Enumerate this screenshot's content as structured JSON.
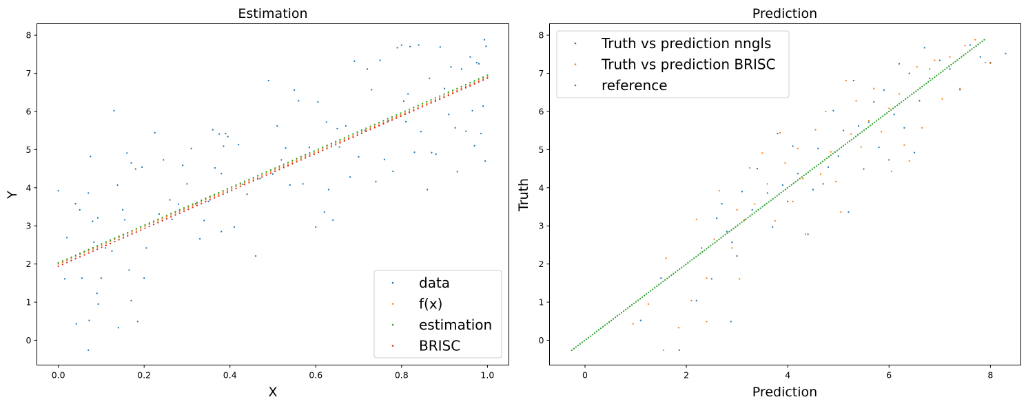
{
  "chart_data": [
    {
      "type": "scatter",
      "title": "Estimation",
      "xlabel": "X",
      "ylabel": "Y",
      "xlim": [
        -0.05,
        1.05
      ],
      "ylim": [
        -0.65,
        8.3
      ],
      "xticks": [
        0.0,
        0.2,
        0.4,
        0.6,
        0.8,
        1.0
      ],
      "xtick_labels": [
        "0.0",
        "0.2",
        "0.4",
        "0.6",
        "0.8",
        "1.0"
      ],
      "yticks": [
        0,
        1,
        2,
        3,
        4,
        5,
        6,
        7,
        8
      ],
      "ytick_labels": [
        "0",
        "1",
        "2",
        "3",
        "4",
        "5",
        "6",
        "7",
        "8"
      ],
      "grid": false,
      "legend_position": "bottom-right",
      "series": [
        {
          "name": "data",
          "color": "#1f77b4",
          "points": [
            [
              0.0,
              3.92
            ],
            [
              0.01,
              2.05
            ],
            [
              0.015,
              1.61
            ],
            [
              0.02,
              2.69
            ],
            [
              0.04,
              3.58
            ],
            [
              0.042,
              0.43
            ],
            [
              0.05,
              3.42
            ],
            [
              0.055,
              1.63
            ],
            [
              0.07,
              3.86
            ],
            [
              0.072,
              0.52
            ],
            [
              0.07,
              -0.26
            ],
            [
              0.075,
              4.82
            ],
            [
              0.08,
              3.12
            ],
            [
              0.083,
              2.57
            ],
            [
              0.09,
              1.23
            ],
            [
              0.092,
              3.21
            ],
            [
              0.093,
              0.95
            ],
            [
              0.1,
              1.63
            ],
            [
              0.11,
              2.42
            ],
            [
              0.125,
              2.34
            ],
            [
              0.13,
              6.02
            ],
            [
              0.14,
              0.33
            ],
            [
              0.138,
              4.07
            ],
            [
              0.15,
              3.42
            ],
            [
              0.155,
              3.16
            ],
            [
              0.16,
              4.91
            ],
            [
              0.165,
              1.84
            ],
            [
              0.17,
              1.04
            ],
            [
              0.17,
              4.65
            ],
            [
              0.18,
              4.49
            ],
            [
              0.185,
              0.49
            ],
            [
              0.195,
              4.54
            ],
            [
              0.2,
              1.63
            ],
            [
              0.205,
              2.42
            ],
            [
              0.225,
              5.44
            ],
            [
              0.235,
              3.31
            ],
            [
              0.245,
              4.73
            ],
            [
              0.26,
              3.68
            ],
            [
              0.265,
              3.17
            ],
            [
              0.28,
              3.57
            ],
            [
              0.29,
              4.59
            ],
            [
              0.3,
              4.1
            ],
            [
              0.31,
              5.03
            ],
            [
              0.32,
              3.58
            ],
            [
              0.33,
              2.66
            ],
            [
              0.34,
              3.14
            ],
            [
              0.35,
              3.64
            ],
            [
              0.36,
              5.52
            ],
            [
              0.365,
              4.52
            ],
            [
              0.375,
              5.41
            ],
            [
              0.38,
              2.85
            ],
            [
              0.38,
              4.37
            ],
            [
              0.385,
              5.09
            ],
            [
              0.39,
              5.42
            ],
            [
              0.395,
              5.34
            ],
            [
              0.41,
              2.97
            ],
            [
              0.42,
              5.13
            ],
            [
              0.43,
              4.09
            ],
            [
              0.44,
              3.83
            ],
            [
              0.46,
              2.21
            ],
            [
              0.47,
              4.24
            ],
            [
              0.49,
              6.81
            ],
            [
              0.5,
              4.36
            ],
            [
              0.51,
              5.62
            ],
            [
              0.52,
              4.73
            ],
            [
              0.53,
              5.04
            ],
            [
              0.54,
              4.07
            ],
            [
              0.55,
              6.56
            ],
            [
              0.56,
              6.28
            ],
            [
              0.57,
              4.1
            ],
            [
              0.585,
              5.06
            ],
            [
              0.6,
              2.97
            ],
            [
              0.605,
              6.25
            ],
            [
              0.62,
              3.36
            ],
            [
              0.625,
              5.72
            ],
            [
              0.63,
              3.95
            ],
            [
              0.64,
              3.15
            ],
            [
              0.65,
              5.55
            ],
            [
              0.655,
              5.07
            ],
            [
              0.67,
              5.62
            ],
            [
              0.68,
              4.28
            ],
            [
              0.69,
              7.32
            ],
            [
              0.7,
              4.81
            ],
            [
              0.715,
              5.5
            ],
            [
              0.72,
              7.11
            ],
            [
              0.73,
              6.57
            ],
            [
              0.74,
              4.16
            ],
            [
              0.75,
              7.34
            ],
            [
              0.76,
              4.74
            ],
            [
              0.77,
              5.76
            ],
            [
              0.78,
              4.43
            ],
            [
              0.79,
              7.67
            ],
            [
              0.8,
              7.74
            ],
            [
              0.805,
              6.27
            ],
            [
              0.81,
              5.73
            ],
            [
              0.815,
              6.46
            ],
            [
              0.82,
              7.7
            ],
            [
              0.83,
              4.93
            ],
            [
              0.84,
              7.74
            ],
            [
              0.845,
              5.47
            ],
            [
              0.86,
              3.95
            ],
            [
              0.865,
              6.87
            ],
            [
              0.87,
              4.92
            ],
            [
              0.88,
              4.88
            ],
            [
              0.89,
              7.69
            ],
            [
              0.9,
              6.6
            ],
            [
              0.91,
              5.92
            ],
            [
              0.915,
              7.17
            ],
            [
              0.925,
              5.57
            ],
            [
              0.93,
              4.42
            ],
            [
              0.94,
              7.11
            ],
            [
              0.95,
              5.48
            ],
            [
              0.96,
              7.43
            ],
            [
              0.965,
              6.02
            ],
            [
              0.97,
              5.1
            ],
            [
              0.975,
              7.28
            ],
            [
              0.98,
              7.25
            ],
            [
              0.985,
              5.42
            ],
            [
              0.99,
              6.14
            ],
            [
              0.993,
              7.88
            ],
            [
              0.995,
              4.7
            ],
            [
              0.997,
              7.71
            ]
          ]
        },
        {
          "name": "f(x)",
          "color": "#ff7f0e",
          "line": {
            "intercept": 2.0,
            "slope": 4.9
          }
        },
        {
          "name": "estimation",
          "color": "#2ca02c",
          "line": {
            "intercept": 2.03,
            "slope": 4.92
          }
        },
        {
          "name": "BRISC",
          "color": "#d62728",
          "line": {
            "intercept": 1.94,
            "slope": 4.93
          }
        }
      ]
    },
    {
      "type": "scatter",
      "title": "Prediction",
      "xlabel": "Prediction",
      "ylabel": "Truth",
      "xlim": [
        -0.7,
        8.6
      ],
      "ylim": [
        -0.65,
        8.3
      ],
      "xticks": [
        0,
        2,
        4,
        6,
        8
      ],
      "xtick_labels": [
        "0",
        "2",
        "4",
        "6",
        "8"
      ],
      "yticks": [
        0,
        1,
        2,
        3,
        4,
        5,
        6,
        7,
        8
      ],
      "ytick_labels": [
        "0",
        "1",
        "2",
        "3",
        "4",
        "5",
        "6",
        "7",
        "8"
      ],
      "grid": false,
      "legend_position": "top-left",
      "series": [
        {
          "name": "Truth vs prediction nngls",
          "color": "#1f77b4",
          "points": [
            [
              1.86,
              -0.26
            ],
            [
              2.88,
              0.49
            ],
            [
              1.1,
              0.52
            ],
            [
              1.5,
              1.63
            ],
            [
              2.2,
              1.04
            ],
            [
              2.3,
              2.42
            ],
            [
              2.5,
              1.61
            ],
            [
              2.6,
              3.2
            ],
            [
              2.7,
              3.58
            ],
            [
              2.8,
              2.85
            ],
            [
              2.9,
              2.57
            ],
            [
              3.0,
              2.21
            ],
            [
              3.1,
              3.9
            ],
            [
              3.3,
              3.42
            ],
            [
              3.4,
              4.5
            ],
            [
              3.6,
              3.86
            ],
            [
              3.7,
              2.97
            ],
            [
              3.8,
              5.42
            ],
            [
              3.9,
              4.07
            ],
            [
              4.0,
              3.64
            ],
            [
              4.1,
              5.09
            ],
            [
              4.2,
              4.37
            ],
            [
              4.4,
              2.78
            ],
            [
              4.5,
              3.95
            ],
            [
              4.6,
              5.03
            ],
            [
              4.7,
              4.1
            ],
            [
              4.8,
              4.54
            ],
            [
              4.9,
              6.02
            ],
            [
              5.0,
              4.83
            ],
            [
              5.1,
              5.5
            ],
            [
              5.2,
              3.36
            ],
            [
              5.3,
              6.81
            ],
            [
              5.4,
              5.62
            ],
            [
              5.5,
              4.49
            ],
            [
              5.6,
              5.72
            ],
            [
              5.7,
              6.25
            ],
            [
              5.8,
              5.06
            ],
            [
              5.9,
              6.56
            ],
            [
              6.0,
              4.73
            ],
            [
              6.1,
              5.92
            ],
            [
              6.2,
              7.25
            ],
            [
              6.3,
              5.57
            ],
            [
              6.4,
              7.0
            ],
            [
              6.5,
              4.92
            ],
            [
              6.6,
              6.28
            ],
            [
              6.7,
              7.67
            ],
            [
              6.8,
              6.87
            ],
            [
              7.0,
              7.34
            ],
            [
              7.2,
              7.11
            ],
            [
              7.4,
              6.57
            ],
            [
              7.6,
              7.74
            ],
            [
              7.8,
              7.43
            ],
            [
              8.0,
              7.28
            ],
            [
              8.3,
              7.52
            ]
          ]
        },
        {
          "name": "Truth vs prediction BRISC",
          "color": "#ff7f0e",
          "points": [
            [
              1.55,
              -0.26
            ],
            [
              1.85,
              0.33
            ],
            [
              2.4,
              0.49
            ],
            [
              0.95,
              0.43
            ],
            [
              1.25,
              0.95
            ],
            [
              2.1,
              1.04
            ],
            [
              2.4,
              1.63
            ],
            [
              3.05,
              1.61
            ],
            [
              1.6,
              2.15
            ],
            [
              2.2,
              3.17
            ],
            [
              2.55,
              2.65
            ],
            [
              2.65,
              3.92
            ],
            [
              2.9,
              2.42
            ],
            [
              3.0,
              3.42
            ],
            [
              3.15,
              3.16
            ],
            [
              3.25,
              4.52
            ],
            [
              3.35,
              3.57
            ],
            [
              3.5,
              4.91
            ],
            [
              3.6,
              4.1
            ],
            [
              3.75,
              3.13
            ],
            [
              3.85,
              5.44
            ],
            [
              3.95,
              4.65
            ],
            [
              4.1,
              3.64
            ],
            [
              4.2,
              5.03
            ],
            [
              4.3,
              4.24
            ],
            [
              4.35,
              2.78
            ],
            [
              4.55,
              5.52
            ],
            [
              4.65,
              4.36
            ],
            [
              4.75,
              6.0
            ],
            [
              4.85,
              4.94
            ],
            [
              4.95,
              4.16
            ],
            [
              5.05,
              3.36
            ],
            [
              5.15,
              6.81
            ],
            [
              5.25,
              5.41
            ],
            [
              5.35,
              6.28
            ],
            [
              5.45,
              5.07
            ],
            [
              5.6,
              5.76
            ],
            [
              5.7,
              6.6
            ],
            [
              5.85,
              5.47
            ],
            [
              6.0,
              6.08
            ],
            [
              6.05,
              4.43
            ],
            [
              6.2,
              6.46
            ],
            [
              6.3,
              5.12
            ],
            [
              6.4,
              4.7
            ],
            [
              6.55,
              7.17
            ],
            [
              6.65,
              5.57
            ],
            [
              6.8,
              7.11
            ],
            [
              6.9,
              7.34
            ],
            [
              7.05,
              6.33
            ],
            [
              7.2,
              7.43
            ],
            [
              7.4,
              6.6
            ],
            [
              7.5,
              7.73
            ],
            [
              7.7,
              7.88
            ],
            [
              7.9,
              7.28
            ],
            [
              8.0,
              7.26
            ]
          ]
        },
        {
          "name": "reference",
          "color": "#2ca02c",
          "diagonal": [
            -0.26,
            7.88
          ]
        }
      ]
    }
  ]
}
